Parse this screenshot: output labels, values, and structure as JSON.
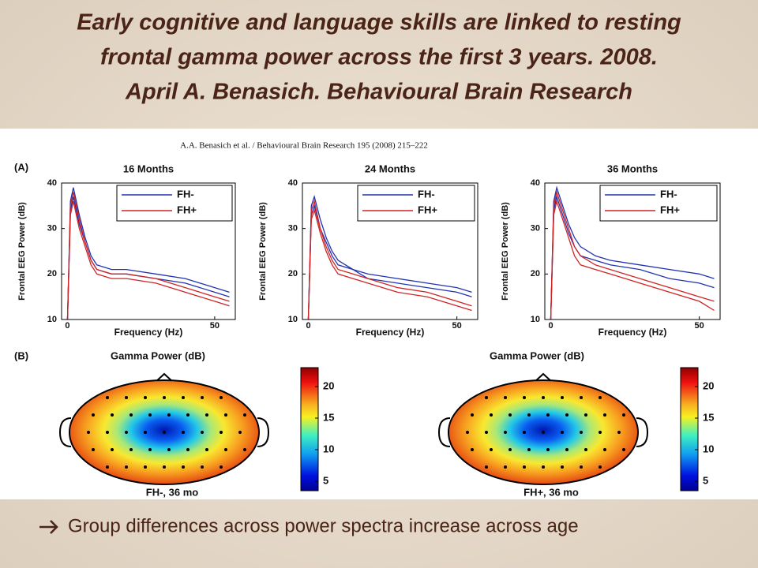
{
  "title_lines": [
    "Early cognitive and language skills are linked to resting",
    "frontal gamma power across the first 3 years. 2008.",
    "April A. Benasich. Behavioural Brain Research"
  ],
  "figure": {
    "header": "A.A. Benasich et al. / Behavioural Brain Research 195 (2008) 215–222",
    "panel_a": "(A)",
    "panel_b": "(B)"
  },
  "chart_data": [
    {
      "type": "line",
      "title": "16 Months",
      "xlabel": "Frequency (Hz)",
      "ylabel": "Frontal EEG Power (dB)",
      "x": [
        0,
        1,
        2,
        4,
        6,
        8,
        10,
        15,
        20,
        30,
        40,
        50,
        55
      ],
      "xlim": [
        -2,
        57
      ],
      "xticks": [
        0,
        50
      ],
      "ylim": [
        10,
        40
      ],
      "yticks": [
        10,
        20,
        30,
        40
      ],
      "series": [
        {
          "name": "FH-",
          "color": "#2233b0",
          "curves": [
            [
              10,
              36,
              39,
              33,
              28,
              24,
              22,
              21,
              21,
              20,
              19,
              17,
              16
            ],
            [
              10,
              34,
              37,
              31,
              27,
              23,
              21,
              20,
              20,
              19,
              18,
              16,
              15
            ]
          ]
        },
        {
          "name": "FH+",
          "color": "#d02424",
          "curves": [
            [
              10,
              35,
              38,
              32,
              27,
              23,
              21,
              20,
              20,
              19,
              17,
              15,
              14
            ],
            [
              10,
              33,
              36,
              30,
              26,
              22,
              20,
              19,
              19,
              18,
              16,
              14,
              13
            ]
          ]
        }
      ]
    },
    {
      "type": "line",
      "title": "24 Months",
      "xlabel": "Frequency (Hz)",
      "ylabel": "Frontal EEG Power (dB)",
      "x": [
        0,
        1,
        2,
        4,
        6,
        8,
        10,
        15,
        20,
        30,
        40,
        50,
        55
      ],
      "xlim": [
        -2,
        57
      ],
      "xticks": [
        0,
        50
      ],
      "ylim": [
        10,
        40
      ],
      "yticks": [
        10,
        20,
        30,
        40
      ],
      "series": [
        {
          "name": "FH-",
          "color": "#2233b0",
          "curves": [
            [
              10,
              35,
              37,
              32,
              28,
              25,
              23,
              21,
              20,
              19,
              18,
              17,
              16
            ],
            [
              10,
              33,
              35,
              30,
              27,
              24,
              22,
              21,
              19,
              18,
              17,
              16,
              15
            ]
          ]
        },
        {
          "name": "FH+",
          "color": "#d02424",
          "curves": [
            [
              10,
              34,
              36,
              30,
              26,
              23,
              21,
              20,
              19,
              17,
              16,
              14,
              13
            ],
            [
              10,
              32,
              34,
              29,
              25,
              22,
              20,
              19,
              18,
              16,
              15,
              13,
              12
            ]
          ]
        }
      ]
    },
    {
      "type": "line",
      "title": "36 Months",
      "xlabel": "Frequency (Hz)",
      "ylabel": "Frontal EEG Power (dB)",
      "x": [
        0,
        1,
        2,
        4,
        6,
        8,
        10,
        15,
        20,
        30,
        40,
        50,
        55
      ],
      "xlim": [
        -2,
        57
      ],
      "xticks": [
        0,
        50
      ],
      "ylim": [
        10,
        40
      ],
      "yticks": [
        10,
        20,
        30,
        40
      ],
      "series": [
        {
          "name": "FH-",
          "color": "#2233b0",
          "curves": [
            [
              10,
              36,
              39,
              35,
              31,
              28,
              26,
              24,
              23,
              22,
              21,
              20,
              19
            ],
            [
              10,
              34,
              37,
              33,
              29,
              26,
              24,
              23,
              22,
              21,
              19,
              18,
              17
            ]
          ]
        },
        {
          "name": "FH+",
          "color": "#d02424",
          "curves": [
            [
              10,
              35,
              38,
              34,
              30,
              26,
              24,
              22,
              21,
              19,
              17,
              15,
              14
            ],
            [
              10,
              33,
              36,
              32,
              28,
              24,
              22,
              21,
              20,
              18,
              16,
              14,
              12
            ]
          ]
        }
      ]
    },
    {
      "type": "topomap",
      "title": "Gamma Power (dB)",
      "label": "FH-, 36 mo",
      "clim": [
        3.5,
        23
      ],
      "cticks": [
        5,
        10,
        15,
        20
      ]
    },
    {
      "type": "topomap",
      "title": "Gamma Power (dB)",
      "label": "FH+, 36 mo",
      "clim": [
        3.5,
        23
      ],
      "cticks": [
        5,
        10,
        15,
        20
      ]
    }
  ],
  "footnote": "Group differences across power spectra increase across age"
}
